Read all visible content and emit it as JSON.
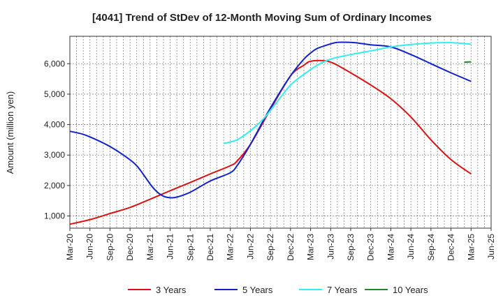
{
  "chart_data": {
    "type": "line",
    "title": "[4041]  Trend of StDev of 12-Month Moving Sum of Ordinary Incomes",
    "xlabel": "",
    "ylabel": "Amount (million yen)",
    "x_ticks": [
      "Mar-20",
      "Jun-20",
      "Sep-20",
      "Dec-20",
      "Mar-21",
      "Jun-21",
      "Sep-21",
      "Dec-21",
      "Mar-22",
      "Jun-22",
      "Sep-22",
      "Dec-22",
      "Mar-23",
      "Jun-23",
      "Sep-23",
      "Dec-23",
      "Mar-24",
      "Jun-24",
      "Sep-24",
      "Dec-24",
      "Mar-25",
      "Jun-25"
    ],
    "y_ticks": [
      1000,
      2000,
      3000,
      4000,
      5000,
      6000
    ],
    "y_tick_labels": [
      "1,000",
      "2,000",
      "3,000",
      "4,000",
      "5,000",
      "6,000"
    ],
    "ylim": [
      600,
      6900
    ],
    "xlim": [
      0,
      63
    ],
    "grid": true,
    "legend_position": "bottom",
    "series": [
      {
        "name": "3 Years",
        "color": "#dd1111",
        "x": [
          0,
          3,
          6,
          9,
          12,
          15,
          18,
          21,
          24,
          25,
          27,
          30,
          33,
          35,
          36,
          38,
          39,
          40,
          42,
          45,
          48,
          51,
          54,
          57,
          60
        ],
        "values": [
          730,
          880,
          1080,
          1280,
          1550,
          1830,
          2100,
          2380,
          2650,
          2800,
          3350,
          4500,
          5600,
          5950,
          6080,
          6100,
          6050,
          5950,
          5700,
          5300,
          4850,
          4250,
          3500,
          2850,
          2380
        ]
      },
      {
        "name": "5 Years",
        "color": "#1122cc",
        "x": [
          0,
          2,
          4,
          6,
          8,
          10,
          12,
          13,
          14,
          15,
          16,
          18,
          21,
          24,
          25,
          26,
          27,
          28,
          30,
          33,
          35,
          36,
          37,
          39,
          40,
          42,
          43,
          45,
          48,
          51,
          54,
          57,
          60
        ],
        "values": [
          3780,
          3680,
          3500,
          3280,
          3000,
          2650,
          2050,
          1800,
          1650,
          1600,
          1620,
          1780,
          2150,
          2420,
          2650,
          2980,
          3350,
          3750,
          4550,
          5600,
          6150,
          6350,
          6500,
          6650,
          6700,
          6700,
          6680,
          6620,
          6550,
          6300,
          6000,
          5700,
          5420
        ]
      },
      {
        "name": "7 Years",
        "color": "#33eeee",
        "x": [
          23,
          25,
          27,
          29,
          31,
          33,
          35,
          37,
          39,
          42,
          45,
          48,
          51,
          54,
          57,
          60
        ],
        "values": [
          3380,
          3500,
          3800,
          4200,
          4750,
          5300,
          5650,
          5950,
          6150,
          6300,
          6420,
          6550,
          6630,
          6680,
          6690,
          6640
        ]
      },
      {
        "name": "10 Years",
        "color": "#228822",
        "x": [
          59,
          60
        ],
        "values": [
          6050,
          6060
        ]
      }
    ]
  }
}
